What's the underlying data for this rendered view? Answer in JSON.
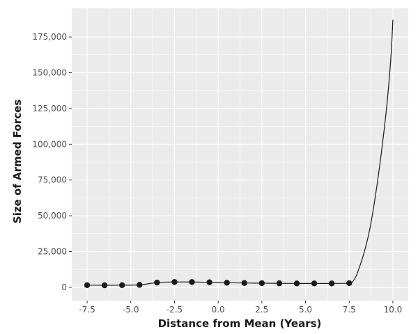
{
  "chart_data": {
    "type": "line",
    "title": "",
    "xlabel": "Distance from Mean (Years)",
    "ylabel": "Size of Armed Forces",
    "xlim": [
      -8.38,
      10.88
    ],
    "ylim": [
      -9300,
      195000
    ],
    "x_ticks": [
      -7.5,
      -5.0,
      -2.5,
      0.0,
      2.5,
      5.0,
      7.5,
      10.0
    ],
    "x_tick_labels": [
      "-7.5",
      "-5.0",
      "-2.5",
      "0.0",
      "2.5",
      "5.0",
      "7.5",
      "10.0"
    ],
    "y_ticks": [
      0,
      25000,
      50000,
      75000,
      100000,
      125000,
      150000,
      175000
    ],
    "y_tick_labels": [
      "0",
      "25,000",
      "50,000",
      "75,000",
      "100,000",
      "125,000",
      "150,000",
      "175,000"
    ],
    "grid": true,
    "panel_background": "#ebebeb",
    "grid_color": "#ffffff",
    "point_color": "#1a1a1a",
    "line_color": "#1a1a1a",
    "series": [
      {
        "points": {
          "x": [
            -7.5,
            -6.5,
            -5.5,
            -4.5,
            -3.5,
            -2.5,
            -1.5,
            -0.5,
            0.5,
            1.5,
            2.5,
            3.5,
            4.5,
            5.5,
            6.5,
            7.5
          ],
          "y": [
            1500,
            1400,
            1500,
            1700,
            3300,
            3700,
            3700,
            3500,
            3200,
            3000,
            2900,
            2800,
            2700,
            2700,
            2700,
            2900
          ]
        },
        "curve": {
          "x": [
            7.5,
            7.7,
            7.9,
            8.1,
            8.3,
            8.5,
            8.7,
            8.9,
            9.1,
            9.3,
            9.5,
            9.7,
            9.9,
            10.0
          ],
          "y": [
            2900,
            4000,
            8000,
            14500,
            22000,
            31000,
            42000,
            56000,
            72000,
            90000,
            110000,
            133000,
            163000,
            187000
          ]
        }
      }
    ]
  }
}
